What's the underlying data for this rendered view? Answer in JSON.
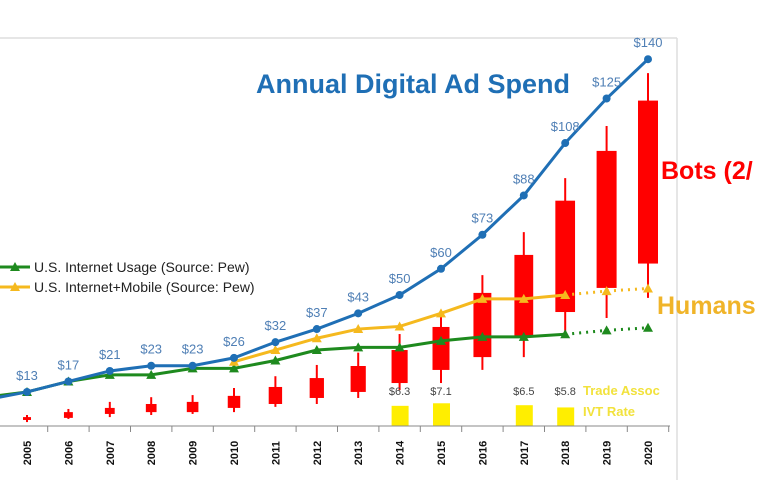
{
  "chart_data": {
    "type": "line",
    "title": "Annual Digital Ad Spend",
    "x": [
      2005,
      2006,
      2007,
      2008,
      2009,
      2010,
      2011,
      2012,
      2013,
      2014,
      2015,
      2016,
      2017,
      2018,
      2019,
      2020
    ],
    "ylim": [
      0,
      150
    ],
    "grid": false,
    "legend_placement": "left",
    "colors": {
      "spend": "#1f6fb5",
      "usage": "#1e8a1e",
      "mobile": "#f5b91e",
      "bots": "#ff0000",
      "ivt": "#ffee00",
      "title": "#1f6fb5",
      "bots_label": "#ff0000",
      "humans_label": "#f0b429",
      "ivt_label": "#f2e23c"
    },
    "spend": {
      "values": [
        13,
        17,
        21,
        23,
        23,
        26,
        32,
        37,
        43,
        50,
        60,
        73,
        88,
        108,
        125,
        140
      ],
      "labels": [
        "$13",
        "$17",
        "$21",
        "$23",
        "$23",
        "$26",
        "$32",
        "$37",
        "$43",
        "$50",
        "$60",
        "$73",
        "$88",
        "$108",
        "$125",
        "$140"
      ]
    },
    "series": [
      {
        "name": "U.S. Internet Usage (Source: Pew)",
        "x": [
          2004,
          2005,
          2006,
          2007,
          2008,
          2009,
          2010,
          2011,
          2012,
          2013,
          2014,
          2015,
          2016,
          2017,
          2018,
          2019,
          2020
        ],
        "values": [
          11,
          13,
          17,
          19.5,
          19.5,
          22,
          22,
          25,
          29,
          30,
          30,
          32.5,
          34,
          34,
          35,
          36.5,
          37.5
        ],
        "projected_from": 2018
      },
      {
        "name": "U.S. Internet+Mobile (Source: Pew)",
        "x": [
          2010,
          2011,
          2012,
          2013,
          2014,
          2015,
          2016,
          2017,
          2018,
          2019,
          2020
        ],
        "values": [
          24.5,
          29,
          33.5,
          37,
          38,
          43,
          48.5,
          48.5,
          50,
          51.5,
          52.5
        ],
        "projected_from": 2018
      }
    ],
    "spend_start": {
      "x": 2004,
      "value": 10
    },
    "bots_candles": [
      {
        "x": 2005,
        "low": 1.5,
        "open": 2.3,
        "close": 3.4,
        "high": 4.2
      },
      {
        "x": 2006,
        "low": 2.7,
        "open": 3.1,
        "close": 5.3,
        "high": 6.5
      },
      {
        "x": 2007,
        "low": 3.4,
        "open": 4.6,
        "close": 6.9,
        "high": 9.2
      },
      {
        "x": 2008,
        "low": 4.2,
        "open": 5.3,
        "close": 8.4,
        "high": 11
      },
      {
        "x": 2009,
        "low": 4.6,
        "open": 5.3,
        "close": 9.2,
        "high": 11.8
      },
      {
        "x": 2010,
        "low": 5.3,
        "open": 6.9,
        "close": 11.5,
        "high": 14.5
      },
      {
        "x": 2011,
        "low": 7.3,
        "open": 8.4,
        "close": 14.9,
        "high": 19
      },
      {
        "x": 2012,
        "low": 8.4,
        "open": 10.7,
        "close": 18.3,
        "high": 23.3
      },
      {
        "x": 2013,
        "low": 10.7,
        "open": 13,
        "close": 22.9,
        "high": 28
      },
      {
        "x": 2014,
        "low": 13.7,
        "open": 16.4,
        "close": 29,
        "high": 35.1
      },
      {
        "x": 2015,
        "low": 16.4,
        "open": 21.4,
        "close": 37.8,
        "high": 44.3
      },
      {
        "x": 2016,
        "low": 21.4,
        "open": 26.3,
        "close": 50.8,
        "high": 57.6
      },
      {
        "x": 2017,
        "low": 26.3,
        "open": 34.4,
        "close": 65.3,
        "high": 74
      },
      {
        "x": 2018,
        "low": 34.7,
        "open": 43.5,
        "close": 86,
        "high": 94.6
      },
      {
        "x": 2019,
        "low": 41.2,
        "open": 52.7,
        "close": 105,
        "high": 114.5
      },
      {
        "x": 2020,
        "low": 48.9,
        "open": 62,
        "close": 124.2,
        "high": 134.7
      }
    ],
    "ivt": [
      {
        "x": 2014,
        "value": 6.3,
        "label": "$6.3"
      },
      {
        "x": 2015,
        "value": 7.1,
        "label": "$7.1"
      },
      {
        "x": 2017,
        "value": 6.5,
        "label": "$6.5"
      },
      {
        "x": 2018,
        "value": 5.8,
        "label": "$5.8"
      }
    ],
    "annotations": {
      "bots": "Bots (2/",
      "humans": "Humans",
      "ivt_line1": "Trade Assoc",
      "ivt_line2": "IVT Rate"
    }
  }
}
